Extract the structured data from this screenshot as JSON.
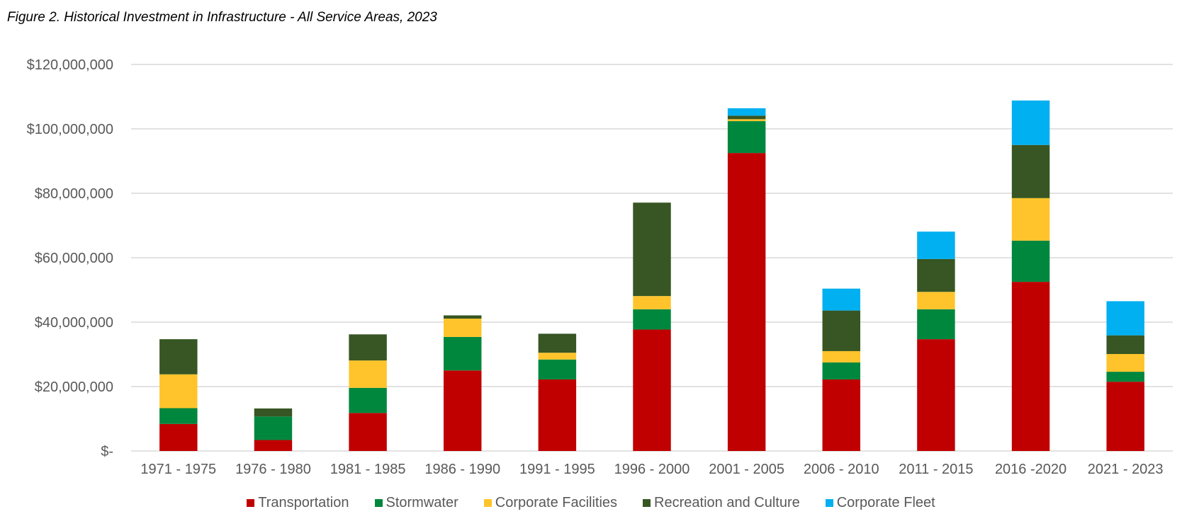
{
  "figure": {
    "title": "Figure 2. Historical Investment in Infrastructure - All Service Areas, 2023"
  },
  "chart_data": {
    "type": "bar",
    "stacked": true,
    "title": "Figure 2. Historical Investment in Infrastructure - All Service Areas, 2023",
    "xlabel": "",
    "ylabel": "",
    "ylim": [
      0,
      120000000
    ],
    "yticks": [
      0,
      20000000,
      40000000,
      60000000,
      80000000,
      100000000,
      120000000
    ],
    "ytick_labels": [
      "$-",
      "$20,000,000",
      "$40,000,000",
      "$60,000,000",
      "$80,000,000",
      "$100,000,000",
      "$120,000,000"
    ],
    "grid": true,
    "legend_position": "bottom",
    "categories": [
      "1971 - 1975",
      "1976 - 1980",
      "1981 - 1985",
      "1986 - 1990",
      "1991 - 1995",
      "1996 - 2000",
      "2001 - 2005",
      "2006 - 2010",
      "2011 - 2015",
      "2016 -2020",
      "2021 - 2023"
    ],
    "series": [
      {
        "name": "Transportation",
        "color": "#C00000",
        "values": [
          8400000,
          3400000,
          11800000,
          25000000,
          22200000,
          37700000,
          92500000,
          22200000,
          34700000,
          52500000,
          21500000
        ]
      },
      {
        "name": "Stormwater",
        "color": "#00873E",
        "values": [
          4900000,
          7300000,
          7800000,
          10400000,
          6200000,
          6300000,
          9900000,
          5300000,
          9300000,
          12800000,
          3100000
        ]
      },
      {
        "name": "Corporate Facilities",
        "color": "#FFC42B",
        "values": [
          10500000,
          0,
          8500000,
          5700000,
          2100000,
          4100000,
          600000,
          3500000,
          5400000,
          13200000,
          5500000
        ]
      },
      {
        "name": "Recreation and Culture",
        "color": "#375623",
        "values": [
          10900000,
          2500000,
          8100000,
          1000000,
          5900000,
          29000000,
          1100000,
          12600000,
          10200000,
          16500000,
          5800000
        ]
      },
      {
        "name": "Corporate Fleet",
        "color": "#00B0F0",
        "values": [
          0,
          0,
          0,
          0,
          0,
          0,
          2300000,
          6800000,
          8500000,
          13800000,
          10600000
        ]
      }
    ]
  }
}
